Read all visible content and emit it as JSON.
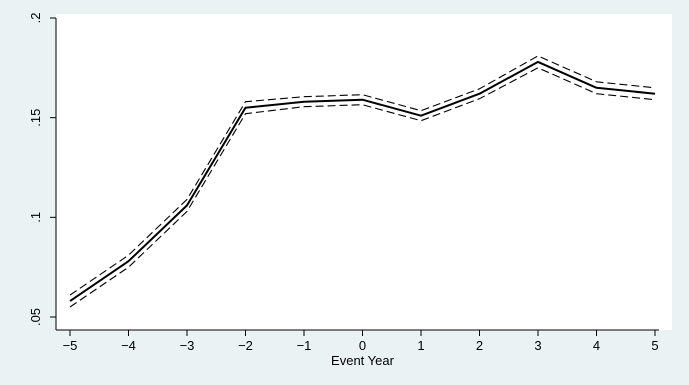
{
  "chart_data": {
    "type": "line",
    "title": "",
    "xlabel": "Event Year",
    "ylabel": "",
    "x": [
      -5,
      -4,
      -3,
      -2,
      -1,
      0,
      1,
      2,
      3,
      4,
      5
    ],
    "xlim": [
      -5,
      5
    ],
    "ylim": [
      0.05,
      0.2
    ],
    "x_ticks": [
      -5,
      -4,
      -3,
      -2,
      -1,
      0,
      1,
      2,
      3,
      4,
      5
    ],
    "x_tick_labels": [
      "−5",
      "−4",
      "−3",
      "−2",
      "−1",
      "0",
      "1",
      "2",
      "3",
      "4",
      "5"
    ],
    "y_ticks": [
      0.05,
      0.1,
      0.15,
      0.2
    ],
    "y_tick_labels": [
      ".05",
      ".1",
      ".15",
      ".2"
    ],
    "grid": false,
    "legend": false,
    "series": [
      {
        "style": "solid",
        "values": [
          0.058,
          0.078,
          0.106,
          0.155,
          0.158,
          0.159,
          0.151,
          0.162,
          0.178,
          0.165,
          0.162
        ]
      },
      {
        "style": "dashed",
        "values": [
          0.061,
          0.081,
          0.109,
          0.158,
          0.1605,
          0.1615,
          0.1535,
          0.1645,
          0.181,
          0.168,
          0.165
        ]
      },
      {
        "style": "dashed",
        "values": [
          0.055,
          0.075,
          0.103,
          0.152,
          0.1555,
          0.1565,
          0.1485,
          0.1595,
          0.175,
          0.162,
          0.159
        ]
      }
    ],
    "colors": {
      "background": "#eaf2f3",
      "plot_background": "#ffffff",
      "line": "#000000"
    }
  }
}
